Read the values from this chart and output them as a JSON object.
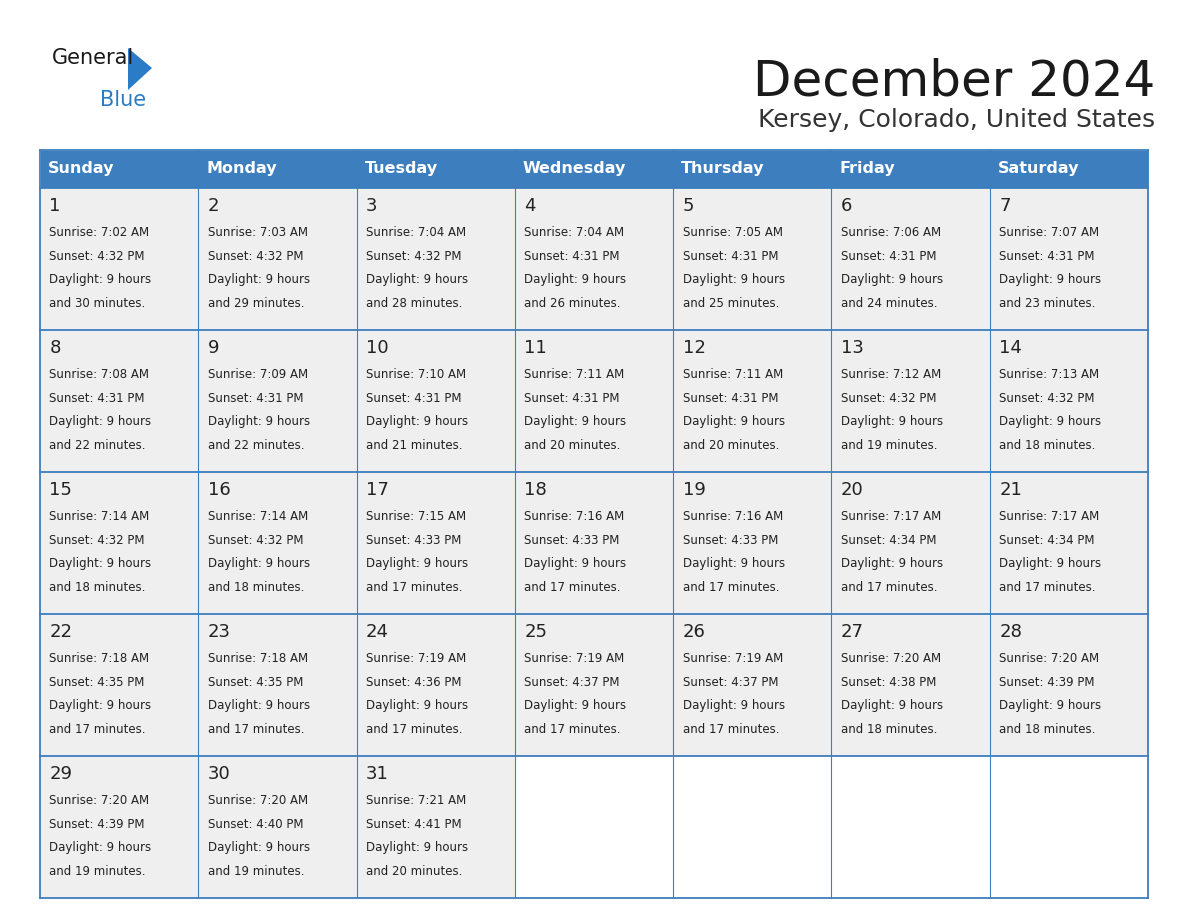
{
  "title": "December 2024",
  "subtitle": "Kersey, Colorado, United States",
  "header_color": "#3d7ebf",
  "header_text_color": "#ffffff",
  "cell_bg_color": "#efefef",
  "cell_bg_empty": "#ffffff",
  "border_color": "#3d7ebf",
  "text_color": "#222222",
  "day_headers": [
    "Sunday",
    "Monday",
    "Tuesday",
    "Wednesday",
    "Thursday",
    "Friday",
    "Saturday"
  ],
  "weeks": [
    [
      {
        "day": 1,
        "sunrise": "7:02 AM",
        "sunset": "4:32 PM",
        "daylight": "9 hours",
        "daylight2": "and 30 minutes."
      },
      {
        "day": 2,
        "sunrise": "7:03 AM",
        "sunset": "4:32 PM",
        "daylight": "9 hours",
        "daylight2": "and 29 minutes."
      },
      {
        "day": 3,
        "sunrise": "7:04 AM",
        "sunset": "4:32 PM",
        "daylight": "9 hours",
        "daylight2": "and 28 minutes."
      },
      {
        "day": 4,
        "sunrise": "7:04 AM",
        "sunset": "4:31 PM",
        "daylight": "9 hours",
        "daylight2": "and 26 minutes."
      },
      {
        "day": 5,
        "sunrise": "7:05 AM",
        "sunset": "4:31 PM",
        "daylight": "9 hours",
        "daylight2": "and 25 minutes."
      },
      {
        "day": 6,
        "sunrise": "7:06 AM",
        "sunset": "4:31 PM",
        "daylight": "9 hours",
        "daylight2": "and 24 minutes."
      },
      {
        "day": 7,
        "sunrise": "7:07 AM",
        "sunset": "4:31 PM",
        "daylight": "9 hours",
        "daylight2": "and 23 minutes."
      }
    ],
    [
      {
        "day": 8,
        "sunrise": "7:08 AM",
        "sunset": "4:31 PM",
        "daylight": "9 hours",
        "daylight2": "and 22 minutes."
      },
      {
        "day": 9,
        "sunrise": "7:09 AM",
        "sunset": "4:31 PM",
        "daylight": "9 hours",
        "daylight2": "and 22 minutes."
      },
      {
        "day": 10,
        "sunrise": "7:10 AM",
        "sunset": "4:31 PM",
        "daylight": "9 hours",
        "daylight2": "and 21 minutes."
      },
      {
        "day": 11,
        "sunrise": "7:11 AM",
        "sunset": "4:31 PM",
        "daylight": "9 hours",
        "daylight2": "and 20 minutes."
      },
      {
        "day": 12,
        "sunrise": "7:11 AM",
        "sunset": "4:31 PM",
        "daylight": "9 hours",
        "daylight2": "and 20 minutes."
      },
      {
        "day": 13,
        "sunrise": "7:12 AM",
        "sunset": "4:32 PM",
        "daylight": "9 hours",
        "daylight2": "and 19 minutes."
      },
      {
        "day": 14,
        "sunrise": "7:13 AM",
        "sunset": "4:32 PM",
        "daylight": "9 hours",
        "daylight2": "and 18 minutes."
      }
    ],
    [
      {
        "day": 15,
        "sunrise": "7:14 AM",
        "sunset": "4:32 PM",
        "daylight": "9 hours",
        "daylight2": "and 18 minutes."
      },
      {
        "day": 16,
        "sunrise": "7:14 AM",
        "sunset": "4:32 PM",
        "daylight": "9 hours",
        "daylight2": "and 18 minutes."
      },
      {
        "day": 17,
        "sunrise": "7:15 AM",
        "sunset": "4:33 PM",
        "daylight": "9 hours",
        "daylight2": "and 17 minutes."
      },
      {
        "day": 18,
        "sunrise": "7:16 AM",
        "sunset": "4:33 PM",
        "daylight": "9 hours",
        "daylight2": "and 17 minutes."
      },
      {
        "day": 19,
        "sunrise": "7:16 AM",
        "sunset": "4:33 PM",
        "daylight": "9 hours",
        "daylight2": "and 17 minutes."
      },
      {
        "day": 20,
        "sunrise": "7:17 AM",
        "sunset": "4:34 PM",
        "daylight": "9 hours",
        "daylight2": "and 17 minutes."
      },
      {
        "day": 21,
        "sunrise": "7:17 AM",
        "sunset": "4:34 PM",
        "daylight": "9 hours",
        "daylight2": "and 17 minutes."
      }
    ],
    [
      {
        "day": 22,
        "sunrise": "7:18 AM",
        "sunset": "4:35 PM",
        "daylight": "9 hours",
        "daylight2": "and 17 minutes."
      },
      {
        "day": 23,
        "sunrise": "7:18 AM",
        "sunset": "4:35 PM",
        "daylight": "9 hours",
        "daylight2": "and 17 minutes."
      },
      {
        "day": 24,
        "sunrise": "7:19 AM",
        "sunset": "4:36 PM",
        "daylight": "9 hours",
        "daylight2": "and 17 minutes."
      },
      {
        "day": 25,
        "sunrise": "7:19 AM",
        "sunset": "4:37 PM",
        "daylight": "9 hours",
        "daylight2": "and 17 minutes."
      },
      {
        "day": 26,
        "sunrise": "7:19 AM",
        "sunset": "4:37 PM",
        "daylight": "9 hours",
        "daylight2": "and 17 minutes."
      },
      {
        "day": 27,
        "sunrise": "7:20 AM",
        "sunset": "4:38 PM",
        "daylight": "9 hours",
        "daylight2": "and 18 minutes."
      },
      {
        "day": 28,
        "sunrise": "7:20 AM",
        "sunset": "4:39 PM",
        "daylight": "9 hours",
        "daylight2": "and 18 minutes."
      }
    ],
    [
      {
        "day": 29,
        "sunrise": "7:20 AM",
        "sunset": "4:39 PM",
        "daylight": "9 hours",
        "daylight2": "and 19 minutes."
      },
      {
        "day": 30,
        "sunrise": "7:20 AM",
        "sunset": "4:40 PM",
        "daylight": "9 hours",
        "daylight2": "and 19 minutes."
      },
      {
        "day": 31,
        "sunrise": "7:21 AM",
        "sunset": "4:41 PM",
        "daylight": "9 hours",
        "daylight2": "and 20 minutes."
      },
      null,
      null,
      null,
      null
    ]
  ],
  "logo_text1": "General",
  "logo_text2": "Blue",
  "logo_color1": "#1a1a1a",
  "logo_color2": "#2a7cc7",
  "logo_triangle_color": "#2a7cc7",
  "title_fontsize": 36,
  "subtitle_fontsize": 18,
  "header_fontsize": 11.5,
  "day_num_fontsize": 13,
  "cell_text_fontsize": 8.5
}
